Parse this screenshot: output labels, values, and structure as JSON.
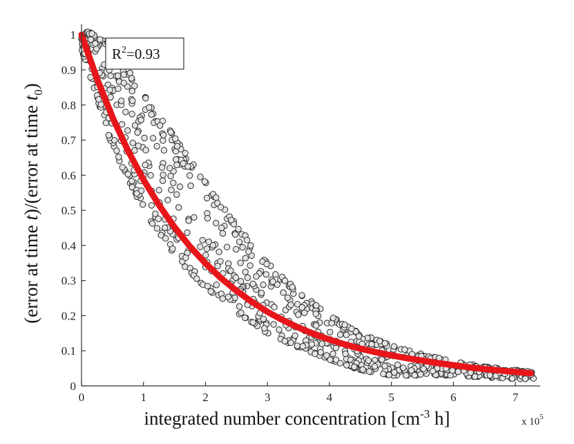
{
  "chart_data": {
    "type": "scatter",
    "title": "",
    "xlabel": "integrated number concentration [cm-3 h]",
    "xlabel_parts": {
      "main": "integrated number concentration [cm",
      "sup": "-3",
      "tail": " h]"
    },
    "ylabel": "(error at time t)/(error at time t0)",
    "ylabel_parts": {
      "a": "(error at time ",
      "t": "t",
      "b": ")/(error at time ",
      "t0": "t",
      "sub": "0",
      "c": ")"
    },
    "x_multiplier": "x 10",
    "x_multiplier_exp": "5",
    "xlim": [
      0,
      7.4
    ],
    "ylim": [
      0,
      1.03
    ],
    "x_ticks": [
      "0",
      "1",
      "2",
      "3",
      "4",
      "5",
      "6",
      "7"
    ],
    "y_ticks": [
      "0",
      "0.1",
      "0.2",
      "0.3",
      "0.4",
      "0.5",
      "0.6",
      "0.7",
      "0.8",
      "0.9",
      "1"
    ],
    "annotation": {
      "prefix": "R",
      "sup": "2",
      "suffix": "=0.93"
    },
    "fit": {
      "name": "fit",
      "color": "#e8161a",
      "x": [
        0,
        0.25,
        0.5,
        0.75,
        1.0,
        1.25,
        1.5,
        1.75,
        2.0,
        2.25,
        2.5,
        2.75,
        3.0,
        3.25,
        3.5,
        3.75,
        4.0,
        4.25,
        4.5,
        4.75,
        5.0,
        5.25,
        5.5,
        5.75,
        6.0,
        6.25,
        6.5,
        6.75,
        7.0,
        7.25
      ],
      "y": [
        1.0,
        0.875,
        0.765,
        0.67,
        0.587,
        0.515,
        0.452,
        0.397,
        0.349,
        0.307,
        0.271,
        0.239,
        0.211,
        0.187,
        0.166,
        0.148,
        0.132,
        0.118,
        0.106,
        0.096,
        0.087,
        0.079,
        0.072,
        0.065,
        0.059,
        0.053,
        0.048,
        0.044,
        0.04,
        0.036
      ]
    },
    "scatter_bands": [
      {
        "name": "upper",
        "x": [
          0,
          0.5,
          1.0,
          1.5,
          2.0,
          2.5,
          3.0,
          3.5,
          4.0,
          4.5,
          5.0,
          5.5,
          6.0,
          6.5,
          7.0,
          7.3
        ],
        "y": [
          1.02,
          0.97,
          0.83,
          0.71,
          0.58,
          0.46,
          0.35,
          0.27,
          0.2,
          0.15,
          0.115,
          0.09,
          0.07,
          0.055,
          0.045,
          0.04
        ]
      },
      {
        "name": "lower",
        "x": [
          0,
          0.5,
          1.0,
          1.5,
          2.0,
          2.5,
          3.0,
          3.5,
          4.0,
          4.5,
          5.0,
          5.5,
          6.0,
          6.5,
          7.0,
          7.3
        ],
        "y": [
          0.96,
          0.68,
          0.5,
          0.37,
          0.28,
          0.21,
          0.15,
          0.11,
          0.075,
          0.045,
          0.03,
          0.03,
          0.03,
          0.025,
          0.02,
          0.02
        ]
      }
    ],
    "scatter_count": 900,
    "marker_fill": "#e4e4e4",
    "marker_stroke": "#2a2a2a",
    "grid": false,
    "legend": "none"
  }
}
